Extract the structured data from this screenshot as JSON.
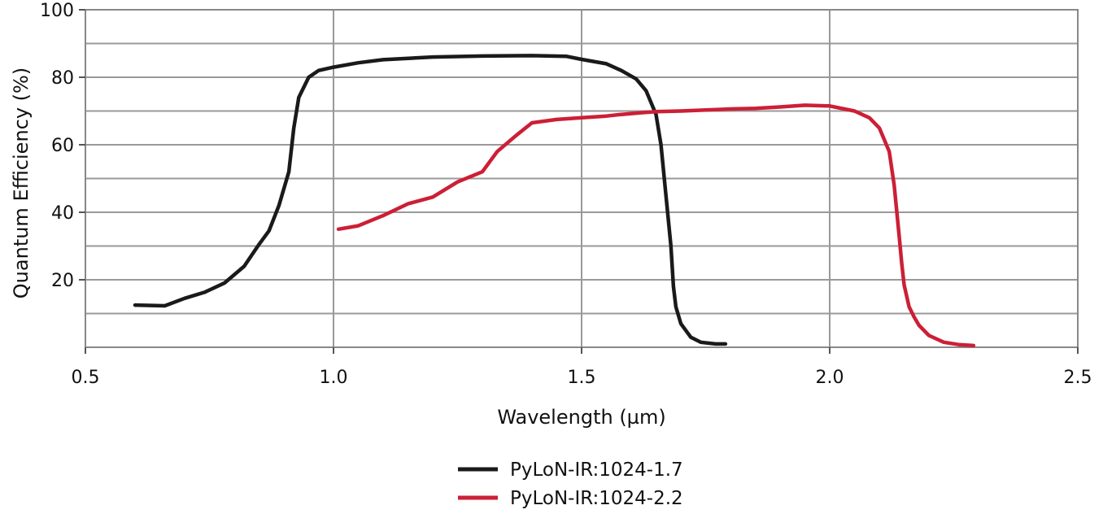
{
  "chart_data": {
    "type": "line",
    "title": "",
    "xlabel": "Wavelength (µm)",
    "ylabel": "Quantum Efficiency  (%)",
    "xlim": [
      0.5,
      2.5
    ],
    "ylim": [
      0,
      100
    ],
    "x_ticks": [
      0.5,
      1.0,
      1.5,
      2.0,
      2.5
    ],
    "x_tick_labels": [
      "0.5",
      "1.0",
      "1.5",
      "2.0",
      "2.5"
    ],
    "y_ticks": [
      20,
      40,
      60,
      80,
      100
    ],
    "y_tick_labels": [
      "20",
      "40",
      "60",
      "80",
      "100"
    ],
    "y_grid": [
      10,
      20,
      30,
      40,
      50,
      60,
      70,
      80,
      90,
      100
    ],
    "grid": true,
    "legend_position": "bottom-center",
    "series": [
      {
        "name": "PyLoN-IR:1024-1.7",
        "color": "#1a1a1a",
        "x": [
          0.6,
          0.66,
          0.7,
          0.74,
          0.78,
          0.82,
          0.85,
          0.87,
          0.89,
          0.91,
          0.92,
          0.93,
          0.95,
          0.97,
          1.0,
          1.05,
          1.1,
          1.2,
          1.3,
          1.4,
          1.47,
          1.5,
          1.55,
          1.58,
          1.61,
          1.63,
          1.65,
          1.66,
          1.67,
          1.68,
          1.685,
          1.69,
          1.7,
          1.72,
          1.74,
          1.77,
          1.79
        ],
        "y": [
          12.5,
          12.3,
          14.5,
          16.3,
          19.0,
          24.0,
          30.5,
          34.5,
          42.0,
          52.0,
          65.0,
          74.0,
          80.0,
          82.0,
          83.0,
          84.3,
          85.2,
          86.0,
          86.3,
          86.4,
          86.2,
          85.3,
          84.0,
          82.0,
          79.5,
          76.0,
          69.0,
          60.0,
          45.0,
          30.0,
          18.0,
          12.0,
          7.0,
          3.0,
          1.5,
          1.0,
          1.0
        ]
      },
      {
        "name": "PyLoN-IR:1024-2.2",
        "color": "#cc1f36",
        "x": [
          1.01,
          1.05,
          1.1,
          1.15,
          1.2,
          1.25,
          1.3,
          1.33,
          1.37,
          1.4,
          1.45,
          1.5,
          1.55,
          1.58,
          1.62,
          1.65,
          1.7,
          1.75,
          1.8,
          1.85,
          1.9,
          1.95,
          2.0,
          2.05,
          2.08,
          2.1,
          2.12,
          2.13,
          2.14,
          2.145,
          2.15,
          2.16,
          2.17,
          2.18,
          2.2,
          2.23,
          2.26,
          2.29
        ],
        "y": [
          35.0,
          36.0,
          39.0,
          42.5,
          44.5,
          49.0,
          52.0,
          58.0,
          63.0,
          66.5,
          67.5,
          68.0,
          68.5,
          69.0,
          69.5,
          69.8,
          70.0,
          70.3,
          70.6,
          70.8,
          71.2,
          71.7,
          71.5,
          70.0,
          68.0,
          65.0,
          58.0,
          48.0,
          33.0,
          25.0,
          18.5,
          12.0,
          9.0,
          6.5,
          3.5,
          1.5,
          0.8,
          0.5
        ]
      }
    ]
  }
}
